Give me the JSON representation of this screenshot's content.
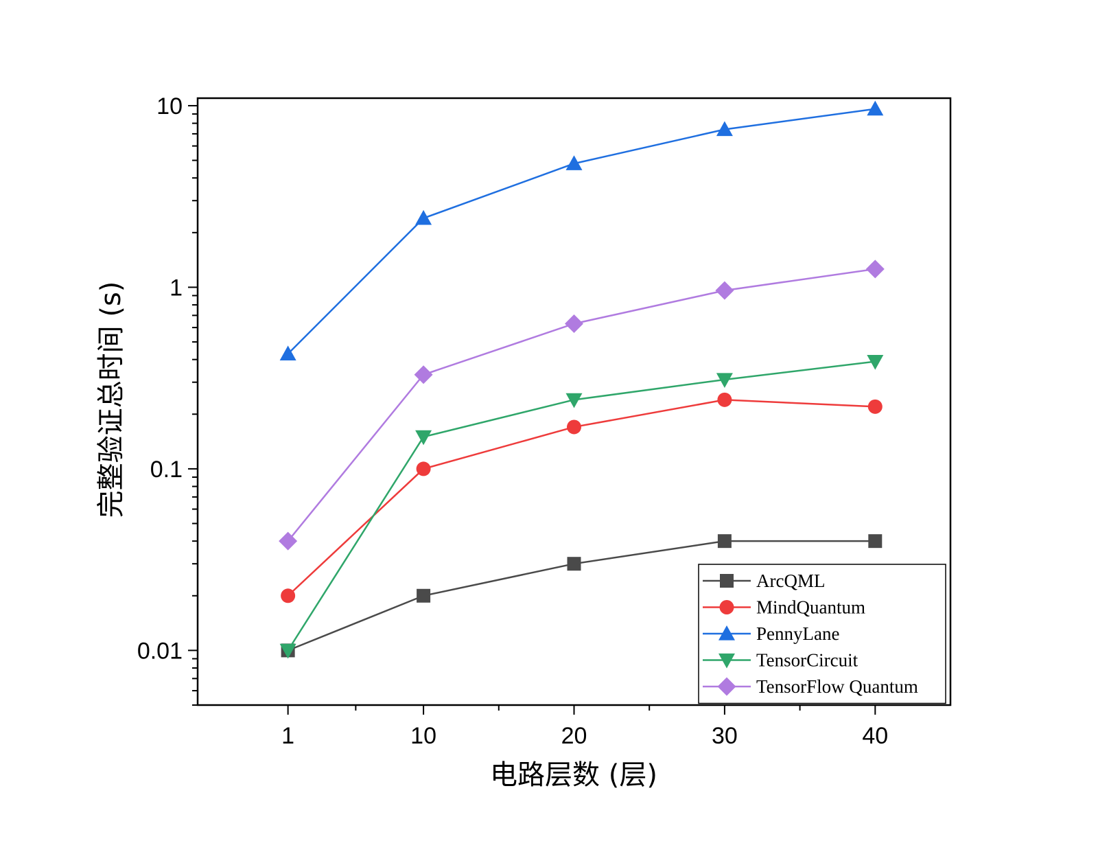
{
  "chart_data": {
    "type": "line",
    "title": "",
    "xlabel": "电路层数 (层)",
    "ylabel": "完整验证总时间 (s)",
    "yscale": "log",
    "ylim": [
      0.005,
      11
    ],
    "xlim": [
      -5,
      45
    ],
    "x": [
      1,
      10,
      20,
      30,
      40
    ],
    "xticks": [
      1,
      10,
      20,
      30,
      40
    ],
    "xtick_labels": [
      "1",
      "10",
      "20",
      "30",
      "40"
    ],
    "yticks": [
      0.01,
      0.1,
      1,
      10
    ],
    "ytick_labels": [
      "0.01",
      "0.1",
      "1",
      "10"
    ],
    "legend": "bottom-right",
    "grid": false,
    "series": [
      {
        "name": "ArcQML",
        "color": "#4a4a4a",
        "marker": "square",
        "values": [
          0.01,
          0.02,
          0.03,
          0.04,
          0.04
        ]
      },
      {
        "name": "MindQuantum",
        "color": "#ee3b3b",
        "marker": "circle",
        "values": [
          0.02,
          0.1,
          0.17,
          0.24,
          0.22
        ]
      },
      {
        "name": "PennyLane",
        "color": "#1f6fe0",
        "marker": "triangle-up",
        "values": [
          0.43,
          2.4,
          4.8,
          7.4,
          9.6
        ]
      },
      {
        "name": "TensorCircuit",
        "color": "#2fa66a",
        "marker": "triangle-down",
        "values": [
          0.01,
          0.15,
          0.24,
          0.31,
          0.39
        ]
      },
      {
        "name": "TensorFlow Quantum",
        "color": "#b07be0",
        "marker": "diamond",
        "values": [
          0.04,
          0.33,
          0.63,
          0.96,
          1.26
        ]
      }
    ]
  }
}
